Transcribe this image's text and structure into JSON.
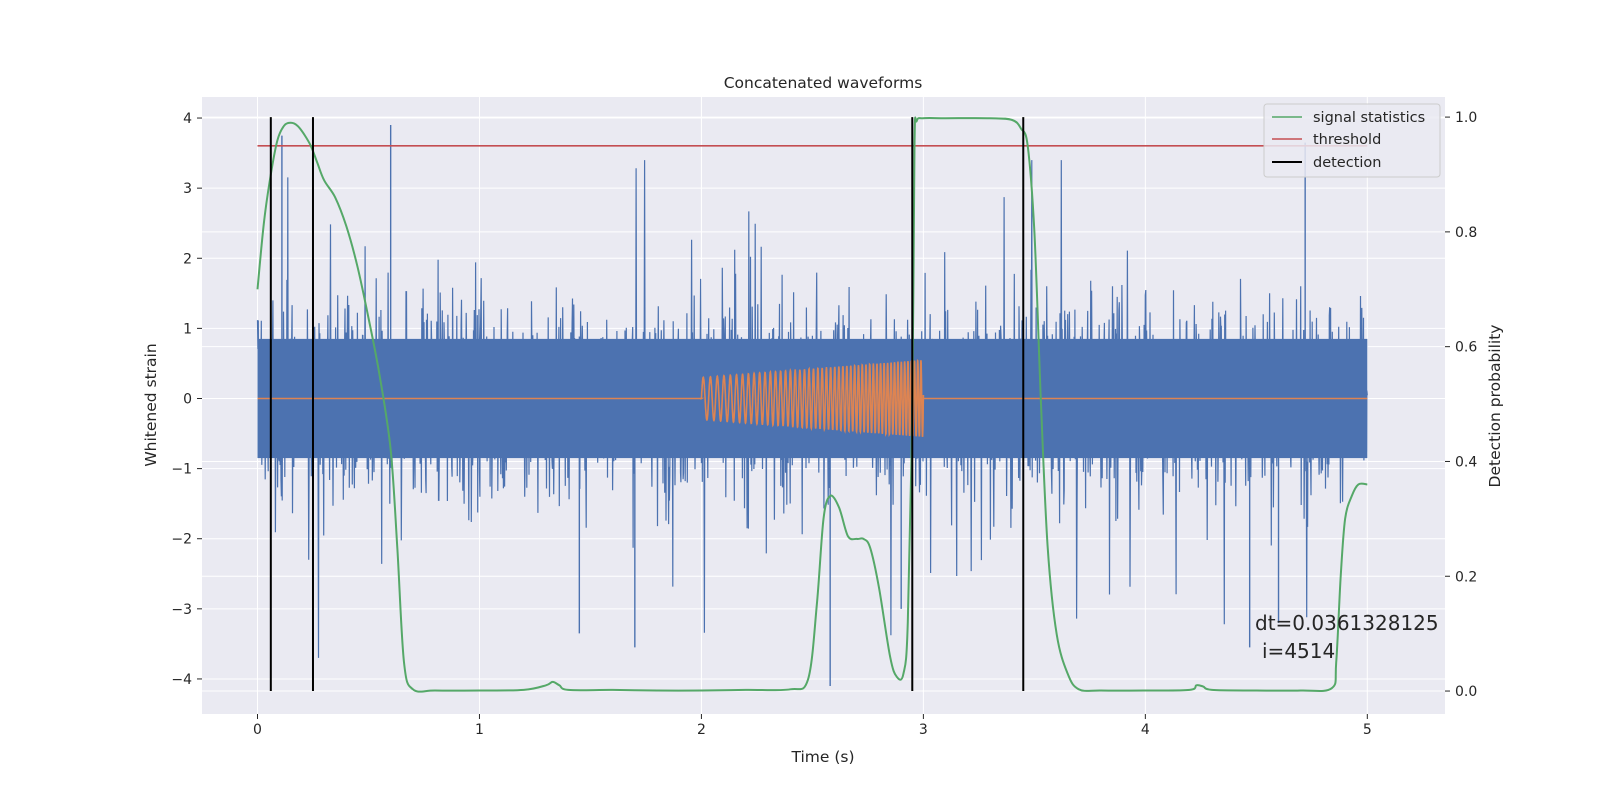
{
  "chart_data": {
    "type": "line",
    "title": "Concatenated waveforms",
    "xlabel": "Time (s)",
    "ylabel_left": "Whitened strain",
    "ylabel_right": "Detection probability",
    "xlim": [
      -0.25,
      5.35
    ],
    "ylim_left": [
      -4.5,
      4.3
    ],
    "ylim_right": [
      -0.04,
      1.035
    ],
    "x_ticks": [
      0,
      1,
      2,
      3,
      4,
      5
    ],
    "y_left_ticks": [
      -4,
      -3,
      -2,
      -1,
      0,
      1,
      2,
      3,
      4
    ],
    "y_right_ticks": [
      0.0,
      0.2,
      0.4,
      0.6,
      0.8,
      1.0
    ],
    "grid": true,
    "legend_position": "top-right",
    "legend": [
      "signal statistics",
      "threshold",
      "detection"
    ],
    "annotation": {
      "line1": "dt=0.0361328125",
      "line2": "i=4514"
    },
    "noise": {
      "x_range": [
        0,
        5
      ],
      "core_band": [
        -0.85,
        0.85
      ],
      "envelope": [
        -4.1,
        3.9
      ],
      "notable_spikes": [
        {
          "x": 0.6,
          "y": 3.9
        },
        {
          "x": 0.11,
          "y": 3.75
        },
        {
          "x": 2.58,
          "y": -4.1
        },
        {
          "x": 4.72,
          "y": 3.65
        },
        {
          "x": 1.7,
          "y": -3.55
        },
        {
          "x": 1.45,
          "y": -3.35
        },
        {
          "x": 3.45,
          "y": -3.35
        },
        {
          "x": 4.47,
          "y": -3.55
        },
        {
          "x": 4.6,
          "y": -3.2
        },
        {
          "x": 2.9,
          "y": -3.0
        }
      ]
    },
    "injected_signal": {
      "x_range": [
        2.0,
        3.0
      ],
      "amplitude_start": 0.3,
      "amplitude_end": 0.55,
      "freq_start": 30,
      "freq_end": 70,
      "baseline": 0.0
    },
    "signal_statistics": {
      "x": [
        0.0,
        0.03,
        0.06,
        0.09,
        0.12,
        0.15,
        0.18,
        0.21,
        0.24,
        0.27,
        0.3,
        0.35,
        0.4,
        0.45,
        0.5,
        0.55,
        0.6,
        0.63,
        0.66,
        0.7,
        0.8,
        1.0,
        1.2,
        1.3,
        1.33,
        1.36,
        1.4,
        1.6,
        1.8,
        2.0,
        2.2,
        2.4,
        2.48,
        2.52,
        2.55,
        2.58,
        2.62,
        2.66,
        2.7,
        2.73,
        2.76,
        2.8,
        2.85,
        2.88,
        2.91,
        2.93,
        2.95,
        2.96,
        2.97,
        3.0,
        3.1,
        3.3,
        3.4,
        3.44,
        3.47,
        3.5,
        3.53,
        3.56,
        3.6,
        3.65,
        3.7,
        3.8,
        4.0,
        4.2,
        4.23,
        4.26,
        4.3,
        4.5,
        4.7,
        4.84,
        4.86,
        4.88,
        4.9,
        4.93,
        4.96,
        5.0
      ],
      "y": [
        0.7,
        0.82,
        0.9,
        0.96,
        0.985,
        0.99,
        0.985,
        0.97,
        0.95,
        0.92,
        0.89,
        0.86,
        0.81,
        0.74,
        0.65,
        0.55,
        0.42,
        0.25,
        0.05,
        0.003,
        0.001,
        0.001,
        0.002,
        0.01,
        0.016,
        0.01,
        0.002,
        0.002,
        0.001,
        0.001,
        0.002,
        0.003,
        0.02,
        0.15,
        0.3,
        0.34,
        0.32,
        0.27,
        0.265,
        0.265,
        0.25,
        0.18,
        0.06,
        0.025,
        0.03,
        0.12,
        0.5,
        0.95,
        0.993,
        0.998,
        0.998,
        0.998,
        0.995,
        0.98,
        0.95,
        0.8,
        0.5,
        0.25,
        0.1,
        0.03,
        0.003,
        0.001,
        0.001,
        0.002,
        0.01,
        0.008,
        0.002,
        0.001,
        0.001,
        0.005,
        0.05,
        0.2,
        0.3,
        0.34,
        0.36,
        0.36
      ]
    },
    "threshold": {
      "x": [
        0,
        5
      ],
      "value": 0.95
    },
    "detections": [
      0.06,
      0.25,
      2.95,
      3.45
    ],
    "detection_span": [
      0.0,
      1.0
    ],
    "colors": {
      "noise": "#4c72b0",
      "injected": "#dd8452",
      "signal_statistics": "#55a868",
      "threshold": "#c44e52",
      "detection": "#000000",
      "axes_bg": "#eaeaf2",
      "grid": "#ffffff"
    }
  }
}
